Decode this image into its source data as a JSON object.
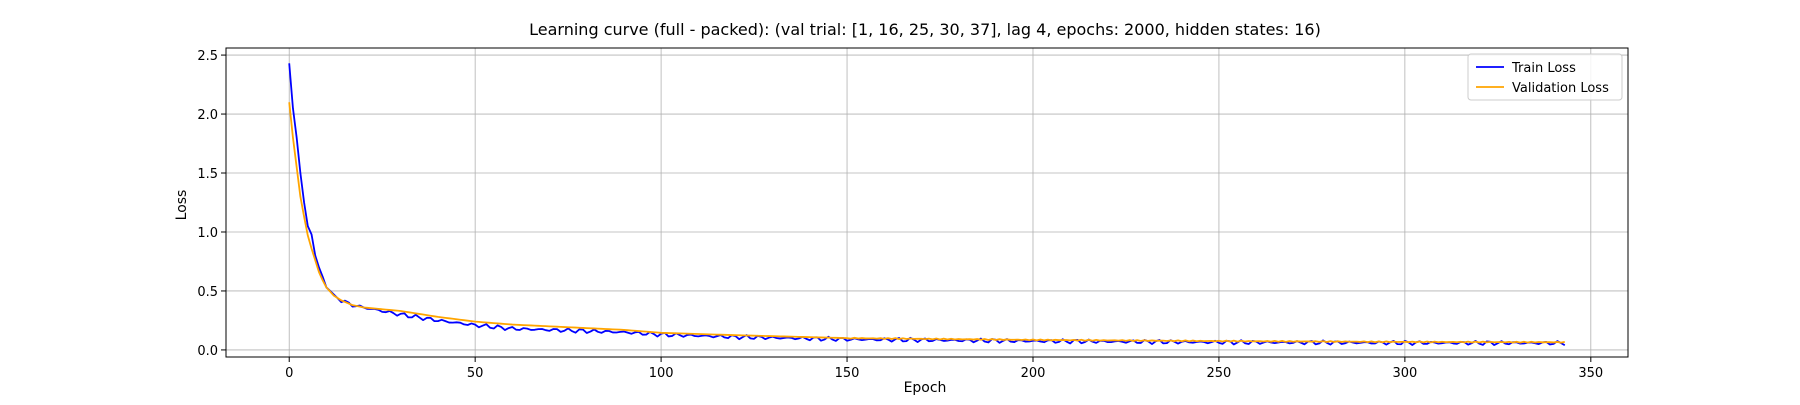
{
  "chart_data": {
    "type": "line",
    "title": "Learning curve (full - packed): (val trial: [1, 16, 25, 30, 37], lag 4, epochs: 2000, hidden states: 16)",
    "xlabel": "Epoch",
    "ylabel": "Loss",
    "xlim": [
      -17,
      360
    ],
    "ylim": [
      -0.06,
      2.56
    ],
    "xticks": [
      0,
      50,
      100,
      150,
      200,
      250,
      300,
      350
    ],
    "yticks": [
      0.0,
      0.5,
      1.0,
      1.5,
      2.0,
      2.5
    ],
    "xtick_labels": [
      "0",
      "50",
      "100",
      "150",
      "200",
      "250",
      "300",
      "350"
    ],
    "ytick_labels": [
      "0.0",
      "0.5",
      "1.0",
      "1.5",
      "2.0",
      "2.5"
    ],
    "grid": true,
    "legend_position": "top-right",
    "series": [
      {
        "name": "Train Loss",
        "color": "#0000ff",
        "anchors": [
          [
            0,
            2.43
          ],
          [
            1,
            2.05
          ],
          [
            2,
            1.8
          ],
          [
            3,
            1.5
          ],
          [
            4,
            1.25
          ],
          [
            5,
            1.05
          ],
          [
            6,
            0.98
          ],
          [
            7,
            0.8
          ],
          [
            8,
            0.7
          ],
          [
            9,
            0.62
          ],
          [
            10,
            0.53
          ],
          [
            12,
            0.47
          ],
          [
            14,
            0.42
          ],
          [
            17,
            0.38
          ],
          [
            20,
            0.36
          ],
          [
            25,
            0.33
          ],
          [
            30,
            0.3
          ],
          [
            40,
            0.25
          ],
          [
            50,
            0.21
          ],
          [
            60,
            0.18
          ],
          [
            70,
            0.17
          ],
          [
            80,
            0.16
          ],
          [
            90,
            0.15
          ],
          [
            100,
            0.13
          ],
          [
            120,
            0.11
          ],
          [
            150,
            0.09
          ],
          [
            200,
            0.075
          ],
          [
            250,
            0.065
          ],
          [
            300,
            0.06
          ],
          [
            343,
            0.058
          ]
        ]
      },
      {
        "name": "Validation Loss",
        "color": "#ffa500",
        "anchors": [
          [
            0,
            2.1
          ],
          [
            1,
            1.8
          ],
          [
            2,
            1.55
          ],
          [
            3,
            1.3
          ],
          [
            4,
            1.13
          ],
          [
            5,
            0.97
          ],
          [
            6,
            0.86
          ],
          [
            7,
            0.76
          ],
          [
            8,
            0.66
          ],
          [
            9,
            0.59
          ],
          [
            10,
            0.53
          ],
          [
            12,
            0.46
          ],
          [
            14,
            0.42
          ],
          [
            17,
            0.38
          ],
          [
            20,
            0.36
          ],
          [
            25,
            0.345
          ],
          [
            30,
            0.33
          ],
          [
            40,
            0.28
          ],
          [
            50,
            0.24
          ],
          [
            60,
            0.215
          ],
          [
            70,
            0.2
          ],
          [
            80,
            0.185
          ],
          [
            90,
            0.17
          ],
          [
            100,
            0.145
          ],
          [
            120,
            0.125
          ],
          [
            150,
            0.1
          ],
          [
            200,
            0.085
          ],
          [
            250,
            0.075
          ],
          [
            300,
            0.068
          ],
          [
            343,
            0.065
          ]
        ]
      }
    ]
  }
}
